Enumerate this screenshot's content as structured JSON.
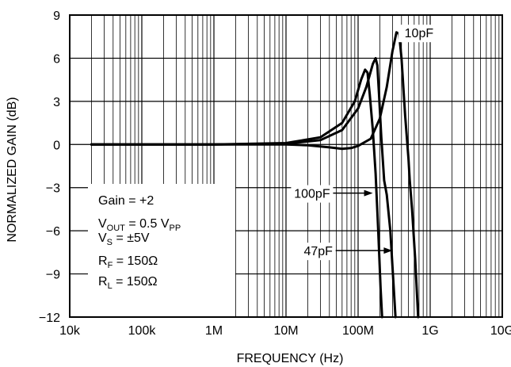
{
  "chart_data": {
    "type": "line",
    "title": "",
    "xlabel": "FREQUENCY (Hz)",
    "ylabel": "NORMALIZED GAIN (dB)",
    "x_scale": "log",
    "xlim": [
      10000,
      10000000000
    ],
    "ylim": [
      -12,
      9
    ],
    "grid": true,
    "x_ticks": [
      {
        "value": 10000,
        "label": "10k"
      },
      {
        "value": 100000,
        "label": "100k"
      },
      {
        "value": 1000000,
        "label": "1M"
      },
      {
        "value": 10000000,
        "label": "10M"
      },
      {
        "value": 100000000,
        "label": "100M"
      },
      {
        "value": 1000000000,
        "label": "1G"
      },
      {
        "value": 10000000000,
        "label": "10G"
      }
    ],
    "y_ticks": [
      {
        "value": 9,
        "label": "9"
      },
      {
        "value": 6,
        "label": "6"
      },
      {
        "value": 3,
        "label": "3"
      },
      {
        "value": 0,
        "label": "0"
      },
      {
        "value": -3,
        "label": "−3"
      },
      {
        "value": -6,
        "label": "−6"
      },
      {
        "value": -9,
        "label": "−9"
      },
      {
        "value": -12,
        "label": "−12"
      }
    ],
    "series": [
      {
        "name": "10pF",
        "points": [
          [
            20000,
            0
          ],
          [
            100000,
            0
          ],
          [
            1000000,
            0
          ],
          [
            10000000,
            0
          ],
          [
            20000000,
            -0.05
          ],
          [
            40000000,
            -0.2
          ],
          [
            60000000,
            -0.3
          ],
          [
            80000000,
            -0.25
          ],
          [
            100000000,
            -0.1
          ],
          [
            150000000,
            0.4
          ],
          [
            200000000,
            1.8
          ],
          [
            250000000,
            4.0
          ],
          [
            300000000,
            6.5
          ],
          [
            340000000,
            7.8
          ],
          [
            370000000,
            7.7
          ],
          [
            400000000,
            6.0
          ],
          [
            450000000,
            2.0
          ],
          [
            500000000,
            -1.0
          ],
          [
            520000000,
            -2.5
          ],
          [
            560000000,
            -4.5
          ],
          [
            620000000,
            -8.0
          ],
          [
            680000000,
            -12.0
          ]
        ]
      },
      {
        "name": "47pF",
        "points": [
          [
            20000,
            0
          ],
          [
            100000,
            0
          ],
          [
            1000000,
            0
          ],
          [
            10000000,
            0.05
          ],
          [
            30000000,
            0.3
          ],
          [
            60000000,
            1.0
          ],
          [
            100000000,
            2.5
          ],
          [
            130000000,
            4.0
          ],
          [
            160000000,
            5.6
          ],
          [
            175000000,
            6.0
          ],
          [
            185000000,
            5.5
          ],
          [
            195000000,
            3.5
          ],
          [
            210000000,
            0.5
          ],
          [
            230000000,
            -2.5
          ],
          [
            250000000,
            -3.5
          ],
          [
            280000000,
            -6.0
          ],
          [
            300000000,
            -8.5
          ],
          [
            330000000,
            -12.0
          ]
        ]
      },
      {
        "name": "100pF",
        "points": [
          [
            20000,
            0
          ],
          [
            100000,
            0
          ],
          [
            1000000,
            0
          ],
          [
            10000000,
            0.1
          ],
          [
            30000000,
            0.5
          ],
          [
            60000000,
            1.5
          ],
          [
            90000000,
            3.0
          ],
          [
            110000000,
            4.5
          ],
          [
            125000000,
            5.2
          ],
          [
            135000000,
            5.0
          ],
          [
            145000000,
            3.5
          ],
          [
            160000000,
            1.0
          ],
          [
            175000000,
            -2.0
          ],
          [
            190000000,
            -6.0
          ],
          [
            205000000,
            -10.0
          ],
          [
            215000000,
            -12.0
          ]
        ]
      }
    ],
    "annotations": {
      "label_10pF": {
        "text": "10pF",
        "x": 700000000,
        "y": 7.5
      },
      "label_100pF": {
        "text": "100pF",
        "x": 23000000,
        "y": -3.6,
        "arrow_to_x": 160000000,
        "arrow_to_y": -3.6
      },
      "label_47pF": {
        "text": "47pF",
        "x": 28000000,
        "y": -7.6,
        "arrow_to_x": 300000000,
        "arrow_to_y": -7.6
      }
    },
    "conditions": {
      "line1": {
        "main": "Gain = +2"
      },
      "line2": {
        "main": "V",
        "sub": "OUT",
        "rest": " = 0.5 V",
        "sub2": "PP"
      },
      "line3": {
        "main": "V",
        "sub": "S",
        "rest": " = ±5V"
      },
      "line4": {
        "main": "R",
        "sub": "F",
        "rest": " = 150Ω"
      },
      "line5": {
        "main": "R",
        "sub": "L",
        "rest": " = 150Ω"
      }
    }
  }
}
